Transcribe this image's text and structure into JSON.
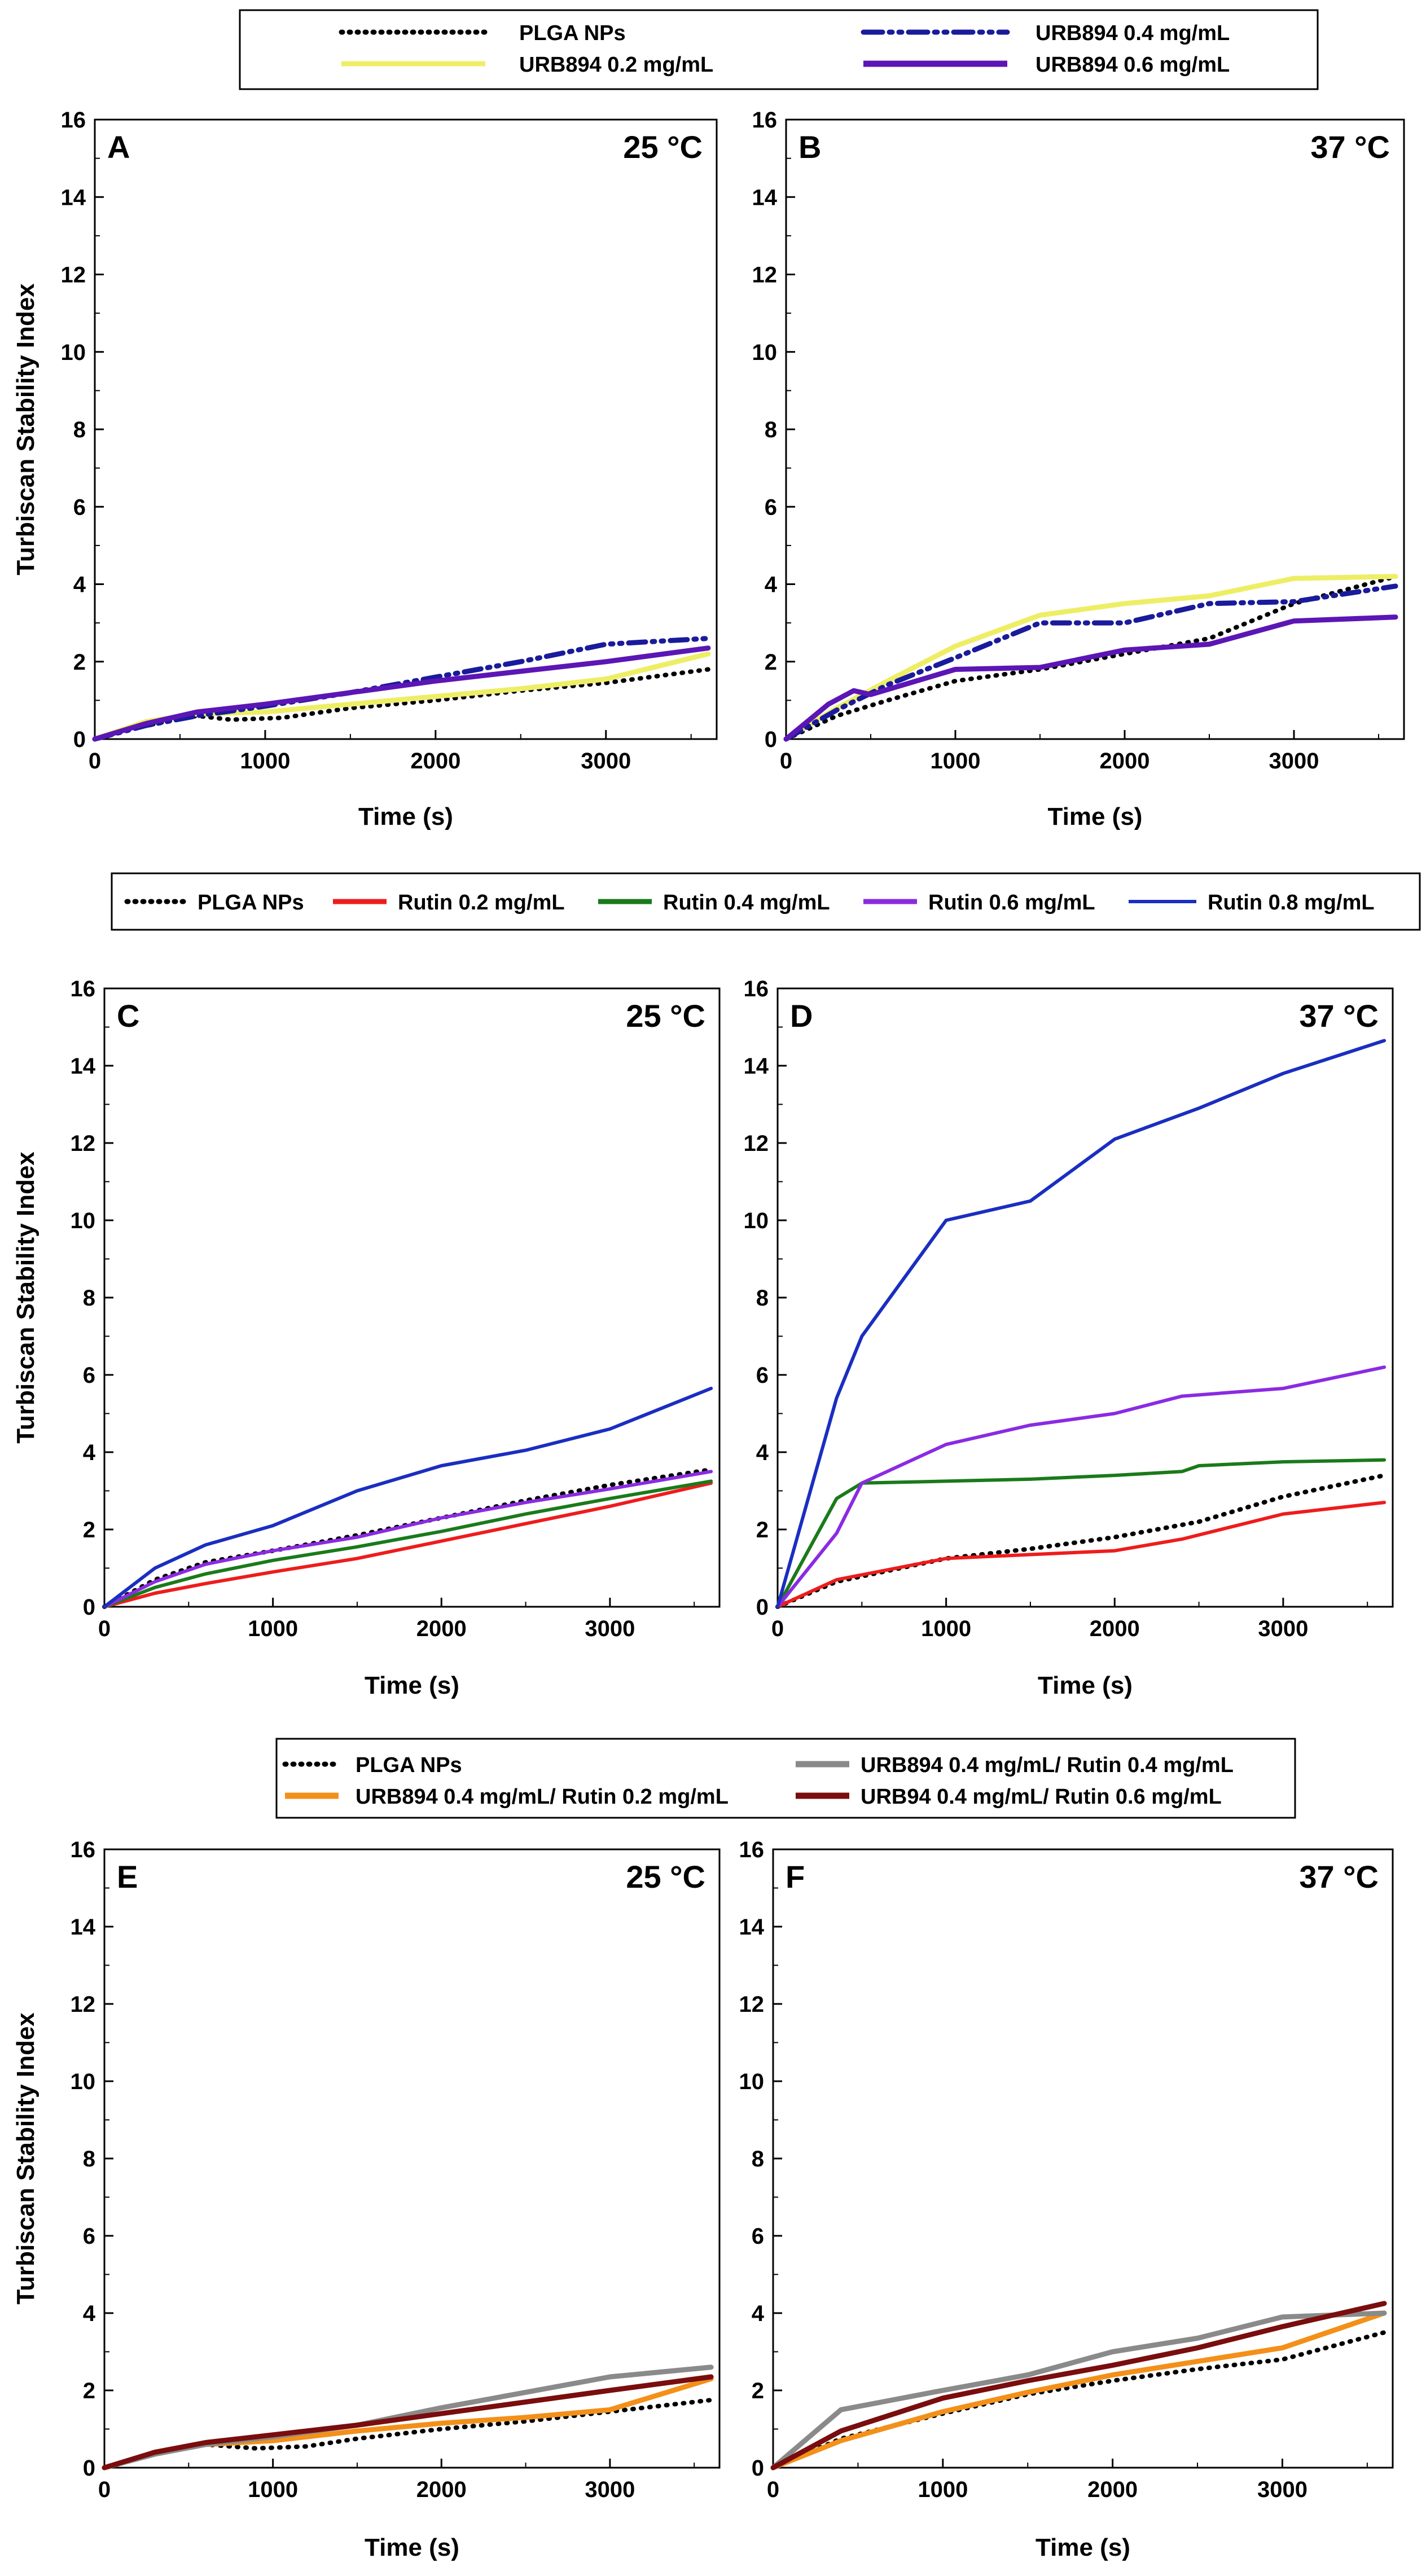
{
  "chart_data": [
    {
      "type": "line",
      "panel": "A",
      "title": "25 °C",
      "xlabel": "Time (s)",
      "ylabel": "Turbiscan Stability Index",
      "xlim": [
        0,
        3650
      ],
      "ylim": [
        0,
        16
      ],
      "xticks": [
        0,
        1000,
        2000,
        3000
      ],
      "yticks": [
        0,
        2,
        4,
        6,
        8,
        10,
        12,
        14,
        16
      ],
      "series": [
        {
          "name": "PLGA NPs",
          "color": "#000000",
          "style": "dotted",
          "x": [
            0,
            300,
            600,
            800,
            1100,
            1500,
            2000,
            2500,
            3000,
            3600
          ],
          "y": [
            0,
            0.35,
            0.6,
            0.5,
            0.55,
            0.8,
            1.0,
            1.25,
            1.45,
            1.8
          ]
        },
        {
          "name": "URB894 0.2 mg/mL",
          "color": "#eeee66",
          "style": "solid",
          "x": [
            0,
            300,
            600,
            1000,
            1500,
            2000,
            2500,
            3000,
            3600
          ],
          "y": [
            0,
            0.45,
            0.65,
            0.7,
            0.9,
            1.1,
            1.3,
            1.55,
            2.2
          ]
        },
        {
          "name": "URB894 0.4 mg/mL",
          "color": "#1a1a9c",
          "style": "dashdot",
          "x": [
            0,
            300,
            600,
            1000,
            1500,
            2000,
            2500,
            3000,
            3600
          ],
          "y": [
            0,
            0.35,
            0.6,
            0.85,
            1.2,
            1.6,
            2.0,
            2.45,
            2.6
          ]
        },
        {
          "name": "URB894 0.6 mg/mL",
          "color": "#5b16b5",
          "style": "solid",
          "x": [
            0,
            300,
            600,
            1000,
            1500,
            2000,
            2500,
            3000,
            3600
          ],
          "y": [
            0,
            0.4,
            0.7,
            0.9,
            1.2,
            1.5,
            1.75,
            2.0,
            2.35
          ]
        }
      ]
    },
    {
      "type": "line",
      "panel": "B",
      "title": "37 °C",
      "xlabel": "Time (s)",
      "ylabel": "",
      "xlim": [
        0,
        3650
      ],
      "ylim": [
        0,
        16
      ],
      "xticks": [
        0,
        1000,
        2000,
        3000
      ],
      "yticks": [
        0,
        2,
        4,
        6,
        8,
        10,
        12,
        14,
        16
      ],
      "series": [
        {
          "name": "PLGA NPs",
          "color": "#000000",
          "style": "dotted",
          "x": [
            0,
            300,
            600,
            1000,
            1500,
            2000,
            2500,
            3000,
            3600
          ],
          "y": [
            0,
            0.6,
            1.0,
            1.5,
            1.8,
            2.2,
            2.6,
            3.5,
            4.2
          ]
        },
        {
          "name": "URB894 0.2 mg/mL",
          "color": "#eeee66",
          "style": "solid",
          "x": [
            0,
            300,
            600,
            1000,
            1500,
            2000,
            2500,
            3000,
            3600
          ],
          "y": [
            0,
            0.8,
            1.5,
            2.4,
            3.2,
            3.5,
            3.7,
            4.15,
            4.2
          ]
        },
        {
          "name": "URB894 0.4 mg/mL",
          "color": "#1a1a9c",
          "style": "dashdot",
          "x": [
            0,
            300,
            600,
            1000,
            1500,
            2000,
            2500,
            3000,
            3600
          ],
          "y": [
            0,
            0.75,
            1.4,
            2.1,
            3.0,
            3.0,
            3.5,
            3.55,
            3.95
          ]
        },
        {
          "name": "URB894 0.6 mg/mL",
          "color": "#5b16b5",
          "style": "solid",
          "x": [
            0,
            250,
            400,
            500,
            1000,
            1500,
            2000,
            2500,
            3000,
            3600
          ],
          "y": [
            0,
            0.9,
            1.25,
            1.15,
            1.8,
            1.85,
            2.3,
            2.45,
            3.05,
            3.15
          ]
        }
      ]
    },
    {
      "type": "line",
      "panel": "C",
      "title": "25 °C",
      "xlabel": "Time (s)",
      "ylabel": "Turbiscan Stability Index",
      "xlim": [
        0,
        3650
      ],
      "ylim": [
        0,
        16
      ],
      "xticks": [
        0,
        1000,
        2000,
        3000
      ],
      "yticks": [
        0,
        2,
        4,
        6,
        8,
        10,
        12,
        14,
        16
      ],
      "series": [
        {
          "name": "PLGA NPs",
          "color": "#000000",
          "style": "dotted",
          "x": [
            0,
            300,
            600,
            1000,
            1500,
            2000,
            2500,
            3000,
            3600
          ],
          "y": [
            0,
            0.7,
            1.15,
            1.45,
            1.85,
            2.3,
            2.75,
            3.15,
            3.55
          ]
        },
        {
          "name": "Rutin 0.2 mg/mL",
          "color": "#ee1c1c",
          "style": "solid",
          "x": [
            0,
            300,
            600,
            1000,
            1500,
            2000,
            2500,
            3000,
            3600
          ],
          "y": [
            0,
            0.35,
            0.6,
            0.9,
            1.25,
            1.7,
            2.15,
            2.6,
            3.2
          ]
        },
        {
          "name": "Rutin 0.4 mg/mL",
          "color": "#1a7a1a",
          "style": "solid",
          "x": [
            0,
            300,
            600,
            1000,
            1500,
            2000,
            2500,
            3000,
            3600
          ],
          "y": [
            0,
            0.5,
            0.85,
            1.2,
            1.55,
            1.95,
            2.4,
            2.8,
            3.25
          ]
        },
        {
          "name": "Rutin 0.6 mg/mL",
          "color": "#8a2be2",
          "style": "solid",
          "x": [
            0,
            300,
            600,
            1000,
            1500,
            2000,
            2500,
            3000,
            3600
          ],
          "y": [
            0,
            0.65,
            1.1,
            1.45,
            1.8,
            2.3,
            2.7,
            3.05,
            3.5
          ]
        },
        {
          "name": "Rutin 0.8 mg/mL",
          "color": "#1a2ec0",
          "style": "solid",
          "x": [
            0,
            300,
            600,
            1000,
            1500,
            2000,
            2500,
            3000,
            3600
          ],
          "y": [
            0,
            1.0,
            1.6,
            2.1,
            3.0,
            3.65,
            4.05,
            4.6,
            5.65
          ]
        }
      ]
    },
    {
      "type": "line",
      "panel": "D",
      "title": "37 °C",
      "xlabel": "Time (s)",
      "ylabel": "",
      "xlim": [
        0,
        3650
      ],
      "ylim": [
        0,
        16
      ],
      "xticks": [
        0,
        1000,
        2000,
        3000
      ],
      "yticks": [
        0,
        2,
        4,
        6,
        8,
        10,
        12,
        14,
        16
      ],
      "series": [
        {
          "name": "PLGA NPs",
          "color": "#000000",
          "style": "dotted",
          "x": [
            0,
            350,
            1000,
            1500,
            2000,
            2500,
            3000,
            3600
          ],
          "y": [
            0,
            0.65,
            1.25,
            1.5,
            1.8,
            2.2,
            2.85,
            3.4
          ]
        },
        {
          "name": "Rutin 0.2 mg/mL",
          "color": "#ee1c1c",
          "style": "solid",
          "x": [
            0,
            350,
            1000,
            1500,
            2000,
            2400,
            3000,
            3600
          ],
          "y": [
            0,
            0.7,
            1.25,
            1.35,
            1.45,
            1.75,
            2.4,
            2.7
          ]
        },
        {
          "name": "Rutin 0.4 mg/mL",
          "color": "#1a7a1a",
          "style": "solid",
          "x": [
            0,
            350,
            500,
            1000,
            1500,
            2000,
            2400,
            2500,
            3000,
            3600
          ],
          "y": [
            0,
            2.8,
            3.2,
            3.25,
            3.3,
            3.4,
            3.5,
            3.65,
            3.75,
            3.8
          ]
        },
        {
          "name": "Rutin 0.6 mg/mL",
          "color": "#8a2be2",
          "style": "solid",
          "x": [
            0,
            350,
            500,
            1000,
            1500,
            2000,
            2400,
            3000,
            3600
          ],
          "y": [
            0,
            1.9,
            3.2,
            4.2,
            4.7,
            5.0,
            5.45,
            5.65,
            6.2
          ]
        },
        {
          "name": "Rutin 0.8 mg/mL",
          "color": "#1a2ec0",
          "style": "solid",
          "x": [
            0,
            350,
            500,
            1000,
            1500,
            2000,
            2500,
            3000,
            3600
          ],
          "y": [
            0,
            5.4,
            7.0,
            10.0,
            10.5,
            12.1,
            12.9,
            13.8,
            14.65
          ]
        }
      ]
    },
    {
      "type": "line",
      "panel": "E",
      "title": "25 °C",
      "xlabel": "Time (s)",
      "ylabel": "Turbiscan Stability Index",
      "xlim": [
        0,
        3650
      ],
      "ylim": [
        0,
        16
      ],
      "xticks": [
        0,
        1000,
        2000,
        3000
      ],
      "yticks": [
        0,
        2,
        4,
        6,
        8,
        10,
        12,
        14,
        16
      ],
      "series": [
        {
          "name": "PLGA NPs",
          "color": "#000000",
          "style": "dotted",
          "x": [
            0,
            300,
            600,
            900,
            1200,
            1500,
            2000,
            2500,
            3000,
            3600
          ],
          "y": [
            0,
            0.35,
            0.6,
            0.5,
            0.55,
            0.75,
            1.0,
            1.2,
            1.45,
            1.75
          ]
        },
        {
          "name": "URB894 0.4 mg/mL/ Rutin 0.2 mg/mL",
          "color": "#f39019",
          "style": "solid",
          "x": [
            0,
            300,
            600,
            1000,
            1500,
            2000,
            2500,
            3000,
            3600
          ],
          "y": [
            0,
            0.4,
            0.6,
            0.7,
            0.95,
            1.15,
            1.3,
            1.5,
            2.3
          ]
        },
        {
          "name": "URB894 0.4 mg/mL/ Rutin 0.4 mg/mL",
          "color": "#8a8a8a",
          "style": "solid",
          "x": [
            0,
            300,
            600,
            1000,
            1500,
            2000,
            2500,
            3000,
            3600
          ],
          "y": [
            0,
            0.35,
            0.6,
            0.8,
            1.1,
            1.55,
            1.95,
            2.35,
            2.6
          ]
        },
        {
          "name": "URB94 0.4 mg/mL/ Rutin 0.6 mg/mL",
          "color": "#7a0d0d",
          "style": "solid",
          "x": [
            0,
            300,
            600,
            1000,
            1500,
            2000,
            2500,
            3000,
            3600
          ],
          "y": [
            0,
            0.4,
            0.65,
            0.85,
            1.1,
            1.4,
            1.7,
            2.0,
            2.35
          ]
        }
      ]
    },
    {
      "type": "line",
      "panel": "F",
      "title": "37 °C",
      "xlabel": "Time (s)",
      "ylabel": "",
      "xlim": [
        0,
        3650
      ],
      "ylim": [
        0,
        16
      ],
      "xticks": [
        0,
        1000,
        2000,
        3000
      ],
      "yticks": [
        0,
        2,
        4,
        6,
        8,
        10,
        12,
        14,
        16
      ],
      "series": [
        {
          "name": "PLGA NPs",
          "color": "#000000",
          "style": "dotted",
          "x": [
            0,
            400,
            1000,
            1500,
            2000,
            2500,
            3000,
            3600
          ],
          "y": [
            0,
            0.75,
            1.4,
            1.9,
            2.25,
            2.55,
            2.8,
            3.5
          ]
        },
        {
          "name": "URB894 0.4 mg/mL/ Rutin 0.2 mg/mL",
          "color": "#f39019",
          "style": "solid",
          "x": [
            0,
            400,
            1000,
            1500,
            2000,
            2500,
            3000,
            3600
          ],
          "y": [
            0,
            0.7,
            1.45,
            1.95,
            2.4,
            2.75,
            3.1,
            4.0
          ]
        },
        {
          "name": "URB894 0.4 mg/mL/ Rutin 0.4 mg/mL",
          "color": "#8a8a8a",
          "style": "solid",
          "x": [
            0,
            400,
            1000,
            1500,
            2000,
            2500,
            3000,
            3600
          ],
          "y": [
            0,
            1.5,
            2.0,
            2.4,
            3.0,
            3.35,
            3.9,
            4.0
          ]
        },
        {
          "name": "URB94 0.4 mg/mL/ Rutin 0.6 mg/mL",
          "color": "#7a0d0d",
          "style": "solid",
          "x": [
            0,
            400,
            1000,
            1500,
            2000,
            2500,
            3000,
            3600
          ],
          "y": [
            0,
            0.95,
            1.8,
            2.25,
            2.65,
            3.1,
            3.65,
            4.25
          ]
        }
      ]
    }
  ],
  "legends": {
    "top": [
      "PLGA NPs",
      "URB894 0.2 mg/mL",
      "URB894 0.4 mg/mL",
      "URB894 0.6 mg/mL"
    ],
    "middle": [
      "PLGA NPs",
      "Rutin 0.2 mg/mL",
      "Rutin 0.4 mg/mL",
      "Rutin 0.6 mg/mL",
      "Rutin 0.8 mg/mL"
    ],
    "bottom": [
      "PLGA NPs",
      "URB894 0.4 mg/mL/ Rutin 0.2 mg/mL",
      "URB894 0.4 mg/mL/ Rutin 0.4 mg/mL",
      "URB94 0.4 mg/mL/ Rutin 0.6 mg/mL"
    ]
  }
}
